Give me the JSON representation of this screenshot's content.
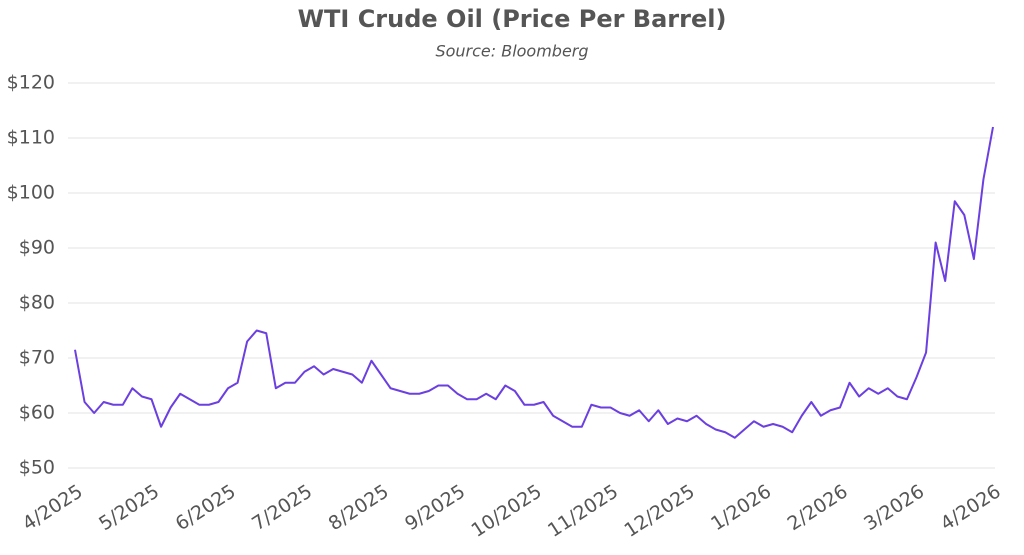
{
  "chart_data": {
    "type": "line",
    "title": "WTI Crude Oil (Price Per Barrel)",
    "subtitle": "Source: Bloomberg",
    "categories": [
      "4/2025",
      null,
      null,
      null,
      null,
      null,
      null,
      null,
      "5/2025",
      null,
      null,
      null,
      null,
      null,
      null,
      null,
      "6/2025",
      null,
      null,
      null,
      null,
      null,
      null,
      null,
      "7/2025",
      null,
      null,
      null,
      null,
      null,
      null,
      null,
      "8/2025",
      null,
      null,
      null,
      null,
      null,
      null,
      null,
      "9/2025",
      null,
      null,
      null,
      null,
      null,
      null,
      null,
      "10/2025",
      null,
      null,
      null,
      null,
      null,
      null,
      null,
      "11/2025",
      null,
      null,
      null,
      null,
      null,
      null,
      null,
      "12/2025",
      null,
      null,
      null,
      null,
      null,
      null,
      null,
      "1/2026",
      null,
      null,
      null,
      null,
      null,
      null,
      null,
      "2/2026",
      null,
      null,
      null,
      null,
      null,
      null,
      null,
      "3/2026",
      null,
      null,
      null,
      null,
      null,
      null,
      null,
      "4/2026"
    ],
    "series": [
      {
        "name": "WTI",
        "color": "#6b3fe0",
        "values": [
          71.5,
          62,
          60,
          62,
          61.5,
          61.5,
          64.5,
          63,
          62.5,
          57.5,
          61,
          63.5,
          62.5,
          61.5,
          61.5,
          62,
          64.5,
          65.5,
          73,
          75,
          74.5,
          64.5,
          65.5,
          65.5,
          67.5,
          68.5,
          67,
          68,
          67.5,
          67,
          65.5,
          69.5,
          67,
          64.5,
          64,
          63.5,
          63.5,
          64,
          65,
          65,
          63.5,
          62.5,
          62.5,
          63.5,
          62.5,
          65,
          64,
          61.5,
          61.5,
          62,
          59.5,
          58.5,
          57.5,
          57.5,
          61.5,
          61,
          61,
          60,
          59.5,
          60.5,
          58.5,
          60.5,
          58,
          59,
          58.5,
          59.5,
          58,
          57,
          56.5,
          55.5,
          57,
          58.5,
          57.5,
          58,
          57.5,
          56.5,
          59.5,
          62,
          59.5,
          60.5,
          61,
          65.5,
          63,
          64.5,
          63.5,
          64.5,
          63,
          62.5,
          66.5,
          71,
          91,
          84,
          98.5,
          96,
          88,
          102.5,
          112
        ]
      }
    ],
    "ylim": [
      50,
      120
    ],
    "yticks": [
      {
        "value": 50,
        "label": "$50"
      },
      {
        "value": 60,
        "label": "$60"
      },
      {
        "value": 70,
        "label": "$70"
      },
      {
        "value": 80,
        "label": "$80"
      },
      {
        "value": 90,
        "label": "$90"
      },
      {
        "value": 100,
        "label": "$100"
      },
      {
        "value": 110,
        "label": "$110"
      },
      {
        "value": 120,
        "label": "$120"
      }
    ],
    "grid": true
  }
}
